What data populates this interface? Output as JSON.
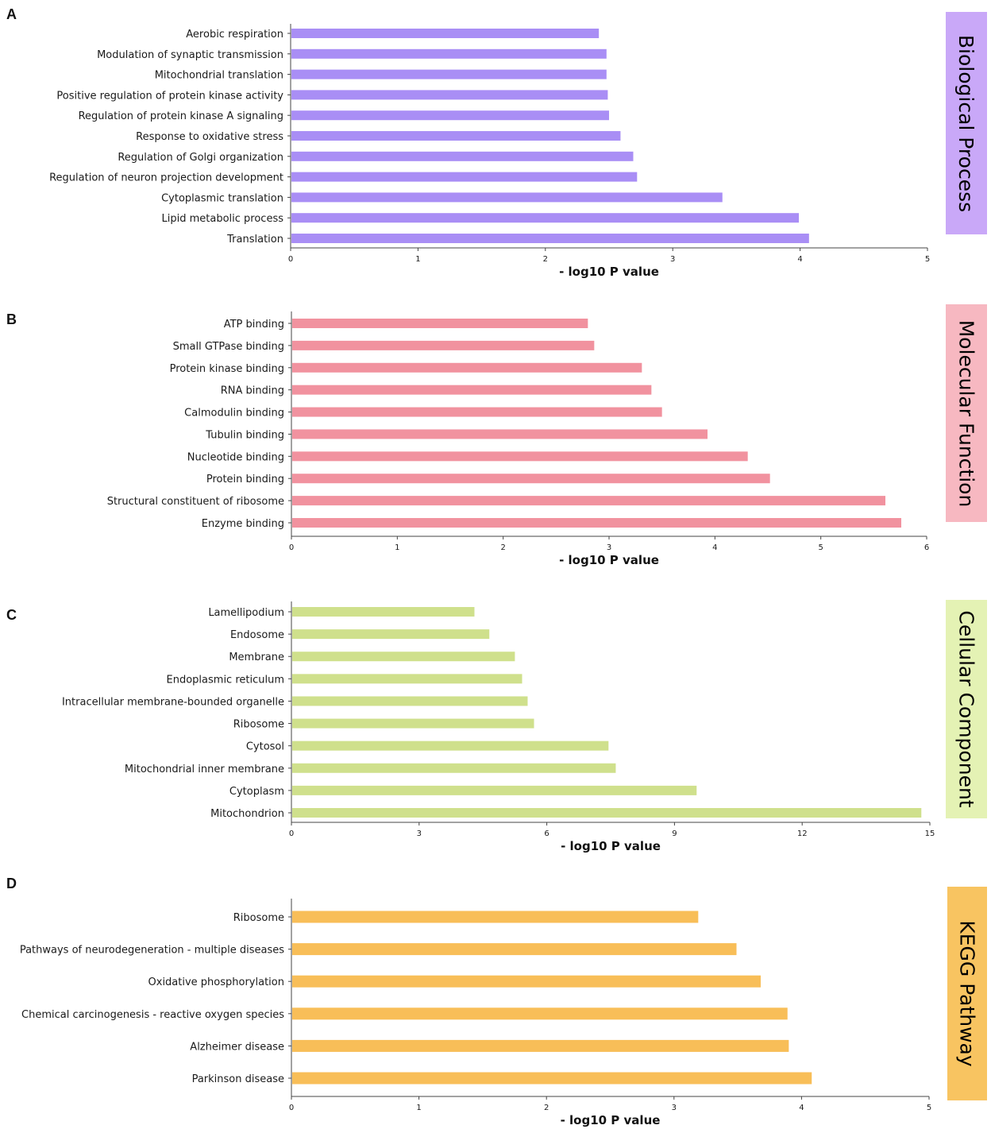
{
  "chart_data": [
    {
      "type": "bar",
      "orientation": "horizontal",
      "panel_letter": "A",
      "side_label": "Biological Process",
      "color": "#a98ef5",
      "side_color": "#c9a8f8",
      "xlabel": "- log10 P value",
      "xlim": [
        0,
        5
      ],
      "xticks": [
        "0",
        "1",
        "2",
        "3",
        "4",
        "5"
      ],
      "categories": [
        "Aerobic respiration",
        "Modulation of synaptic transmission",
        "Mitochondrial translation",
        "Positive regulation of protein kinase activity",
        "Regulation of protein kinase A signaling",
        "Response to oxidative stress",
        "Regulation of Golgi organization",
        "Regulation of neuron projection development",
        "Cytoplasmic translation",
        "Lipid metabolic process",
        "Translation"
      ],
      "values": [
        2.42,
        2.48,
        2.48,
        2.49,
        2.5,
        2.59,
        2.69,
        2.72,
        3.39,
        3.99,
        4.07
      ]
    },
    {
      "type": "bar",
      "orientation": "horizontal",
      "panel_letter": "B",
      "side_label": "Molecular Function",
      "color": "#f1929f",
      "side_color": "#f7b8c1",
      "xlabel": "- log10 P value",
      "xlim": [
        0,
        6
      ],
      "xticks": [
        "0",
        "1",
        "2",
        "3",
        "4",
        "5",
        "6"
      ],
      "categories": [
        "ATP binding",
        "Small GTPase binding",
        "Protein kinase binding",
        "RNA binding",
        "Calmodulin binding",
        "Tubulin binding",
        "Nucleotide binding",
        "Protein binding",
        "Structural constituent of ribosome",
        "Enzyme binding"
      ],
      "values": [
        2.8,
        2.86,
        3.31,
        3.4,
        3.5,
        3.93,
        4.31,
        4.52,
        5.61,
        5.76
      ]
    },
    {
      "type": "bar",
      "orientation": "horizontal",
      "panel_letter": "C",
      "side_label": "Cellular Component",
      "color": "#cfe08c",
      "side_color": "#e4f2b4",
      "xlabel": "- log10 P value",
      "xlim": [
        0,
        15
      ],
      "xticks": [
        "0",
        "3",
        "6",
        "9",
        "12",
        "15"
      ],
      "categories": [
        "Lamellipodium",
        "Endosome",
        "Membrane",
        "Endoplasmic reticulum",
        "Intracellular membrane-bounded organelle",
        "Ribosome",
        "Cytosol",
        "Mitochondrial inner membrane",
        "Cytoplasm",
        "Mitochondrion"
      ],
      "values": [
        4.3,
        4.65,
        5.25,
        5.42,
        5.55,
        5.7,
        7.45,
        7.62,
        9.52,
        14.8
      ]
    },
    {
      "type": "bar",
      "orientation": "horizontal",
      "panel_letter": "D",
      "side_label": "KEGG Pathway",
      "color": "#f8be58",
      "side_color": "#f8c461",
      "xlabel": "- log10 P value",
      "xlim": [
        0,
        5
      ],
      "xticks": [
        "0",
        "1",
        "2",
        "3",
        "4",
        "5"
      ],
      "categories": [
        "Ribosome",
        "Pathways of neurodegeneration - multiple diseases",
        "Oxidative phosphorylation",
        "Chemical carcinogenesis - reactive oxygen species",
        "Alzheimer disease",
        "Parkinson disease"
      ],
      "values": [
        3.19,
        3.49,
        3.68,
        3.89,
        3.9,
        4.08
      ]
    }
  ]
}
